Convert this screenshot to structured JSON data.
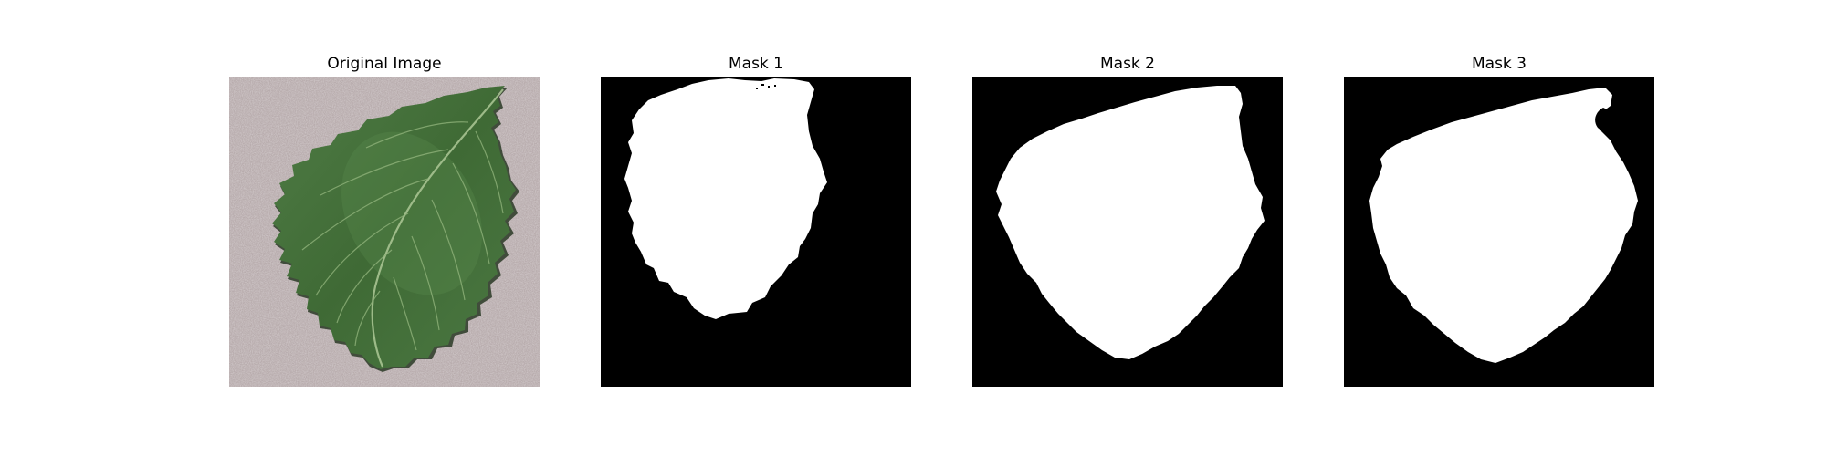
{
  "figure": {
    "panels": [
      {
        "title": "Original Image",
        "kind": "photo",
        "content": "green serrated leaf on grey textured background"
      },
      {
        "title": "Mask 1",
        "kind": "mask"
      },
      {
        "title": "Mask 2",
        "kind": "mask"
      },
      {
        "title": "Mask 3",
        "kind": "mask"
      }
    ]
  },
  "colors": {
    "leaf_dark": "#3f6a35",
    "leaf_mid": "#55834a",
    "leaf_light": "#6d9a5f",
    "vein": "#9ebd87",
    "background_gray": "#b8acad",
    "leaf_shadow": "#1f2f1c",
    "mask_bg": "#000000",
    "mask_fg": "#ffffff"
  }
}
